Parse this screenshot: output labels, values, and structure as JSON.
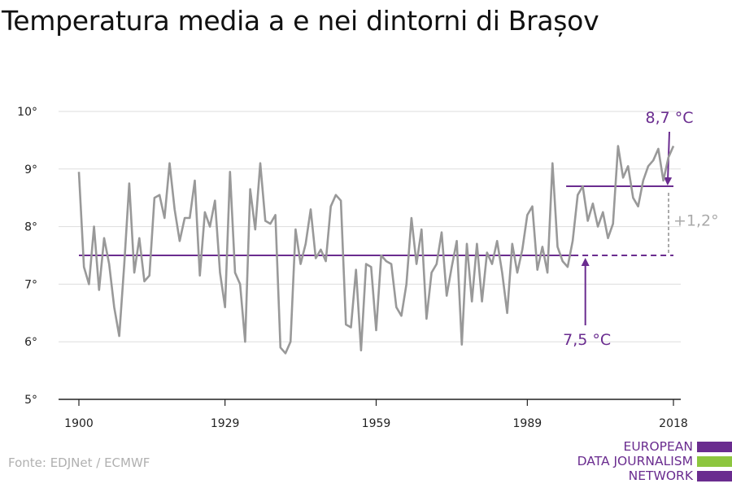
{
  "page": {
    "title": "Temperatura media a e nei dintorni di Brașov",
    "source": "Fonte: EDJNet / ECMWF"
  },
  "logo": {
    "line1": "EUROPEAN",
    "line2": "DATA JOURNALISM",
    "line3": "NETWORK",
    "colors": [
      "#6a2c8f",
      "#8dc63f",
      "#6a2c8f"
    ]
  },
  "chart_data": {
    "type": "line",
    "title": "Temperatura media a e nei dintorni di Brașov",
    "xlabel": "",
    "ylabel": "",
    "xlim": [
      1900,
      2018
    ],
    "ylim": [
      5,
      10
    ],
    "x_ticks": [
      1900,
      1929,
      1959,
      1989,
      2018
    ],
    "y_ticks": [
      {
        "value": 5,
        "label": "5°"
      },
      {
        "value": 6,
        "label": "6°"
      },
      {
        "value": 7,
        "label": "7°"
      },
      {
        "value": 8,
        "label": "8°"
      },
      {
        "value": 9,
        "label": "9°"
      },
      {
        "value": 10,
        "label": "10°"
      }
    ],
    "grid": true,
    "colors": {
      "series": "#999999",
      "accent": "#6a2c8f",
      "grid": "#dddddd",
      "diff": "#aaaaaa"
    },
    "series": [
      {
        "x": [
          1900,
          1901,
          1902,
          1903,
          1904,
          1905,
          1906,
          1907,
          1908,
          1909,
          1910,
          1911,
          1912,
          1913,
          1914,
          1915,
          1916,
          1917,
          1918,
          1919,
          1920,
          1921,
          1922,
          1923,
          1924,
          1925,
          1926,
          1927,
          1928,
          1929,
          1930,
          1931,
          1932,
          1933,
          1934,
          1935,
          1936,
          1937,
          1938,
          1939,
          1940,
          1941,
          1942,
          1943,
          1944,
          1945,
          1946,
          1947,
          1948,
          1949,
          1950,
          1951,
          1952,
          1953,
          1954,
          1955,
          1956,
          1957,
          1958,
          1959,
          1960,
          1961,
          1962,
          1963,
          1964,
          1965,
          1966,
          1967,
          1968,
          1969,
          1970,
          1971,
          1972,
          1973,
          1974,
          1975,
          1976,
          1977,
          1978,
          1979,
          1980,
          1981,
          1982,
          1983,
          1984,
          1985,
          1986,
          1987,
          1988,
          1989,
          1990,
          1991,
          1992,
          1993,
          1994,
          1995,
          1996,
          1997,
          1998,
          1999,
          2000,
          2001,
          2002,
          2003,
          2004,
          2005,
          2006,
          2007,
          2008,
          2009,
          2010,
          2011,
          2012,
          2013,
          2014,
          2015,
          2016,
          2017,
          2018
        ],
        "values": [
          8.95,
          7.3,
          7.0,
          8.0,
          6.9,
          7.8,
          7.35,
          6.6,
          6.1,
          7.35,
          8.75,
          7.2,
          7.8,
          7.05,
          7.15,
          8.5,
          8.55,
          8.15,
          9.1,
          8.3,
          7.75,
          8.15,
          8.15,
          8.8,
          7.15,
          8.25,
          8.0,
          8.45,
          7.2,
          6.6,
          8.95,
          7.2,
          7.0,
          6.0,
          8.65,
          7.95,
          9.1,
          8.1,
          8.05,
          8.2,
          5.9,
          5.8,
          6.0,
          7.95,
          7.35,
          7.7,
          8.3,
          7.45,
          7.6,
          7.4,
          8.35,
          8.55,
          8.45,
          6.3,
          6.25,
          7.25,
          5.85,
          7.35,
          7.3,
          6.2,
          7.5,
          7.4,
          7.35,
          6.6,
          6.45,
          7.0,
          8.15,
          7.35,
          7.95,
          6.4,
          7.2,
          7.35,
          7.9,
          6.8,
          7.3,
          7.75,
          5.95,
          7.7,
          6.7,
          7.7,
          6.7,
          7.55,
          7.35,
          7.75,
          7.2,
          6.5,
          7.7,
          7.2,
          7.6,
          8.2,
          8.35,
          7.25,
          7.65,
          7.2,
          9.1,
          7.65,
          7.4,
          7.3,
          7.75,
          8.55,
          8.7,
          8.1,
          8.4,
          8.0,
          8.25,
          7.8,
          8.05,
          9.4,
          8.85,
          9.05,
          8.5,
          8.35,
          8.8,
          9.05,
          9.15,
          9.35,
          8.8,
          9.2,
          9.4
        ]
      }
    ],
    "annotations": {
      "baseline": {
        "value": 7.5,
        "label": "7,5 °C",
        "from": 1900,
        "to": 2018,
        "dashed_from": 1998
      },
      "recent": {
        "value": 8.7,
        "label": "8,7 °C",
        "from": 1998,
        "to": 2018
      },
      "difference_label": "+1,2°"
    }
  }
}
